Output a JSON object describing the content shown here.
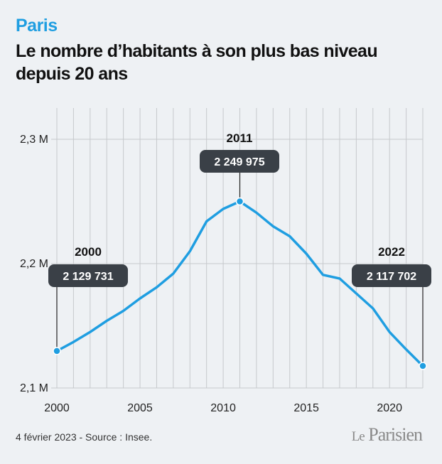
{
  "kicker": "Paris",
  "title": "Le nombre d’habitants à son plus bas niveau depuis 20 ans",
  "footer": "4 février 2023 - Source : Insee.",
  "logo": {
    "le": "Le",
    "name": "Parisien"
  },
  "colors": {
    "line": "#1f9ee1",
    "callout": "#3a4047",
    "grid": "#c6c9cc",
    "background": "#eef1f4"
  },
  "chart_data": {
    "type": "line",
    "title": "Le nombre d’habitants à son plus bas niveau depuis 20 ans",
    "xlabel": "",
    "ylabel": "",
    "x": [
      2000,
      2001,
      2002,
      2003,
      2004,
      2005,
      2006,
      2007,
      2008,
      2009,
      2010,
      2011,
      2012,
      2013,
      2014,
      2015,
      2016,
      2017,
      2018,
      2019,
      2020,
      2021,
      2022
    ],
    "series": [
      {
        "name": "",
        "values": [
          2129731,
          2137000,
          2145000,
          2154000,
          2162000,
          2172000,
          2181000,
          2192000,
          2210000,
          2234000,
          2244000,
          2249975,
          2241000,
          2230000,
          2222000,
          2208000,
          2191000,
          2188000,
          2176000,
          2164000,
          2145000,
          2131000,
          2117702
        ]
      }
    ],
    "xticks": [
      2000,
      2005,
      2010,
      2015,
      2020
    ],
    "xtick_labels": [
      "2000",
      "2005",
      "2010",
      "2015",
      "2020"
    ],
    "xlim": [
      2000,
      2022
    ],
    "yticks": [
      2100000,
      2200000,
      2300000
    ],
    "ytick_labels": [
      "2,1 M",
      "2,2 M",
      "2,3 M"
    ],
    "ylim": [
      2100000,
      2300000
    ],
    "grid": "vertical yearly lines, horizontal at y ticks",
    "annotations": [
      {
        "year": 2000,
        "year_label": "2000",
        "value_label": "2 129 731"
      },
      {
        "year": 2011,
        "year_label": "2011",
        "value_label": "2 249 975"
      },
      {
        "year": 2022,
        "year_label": "2022",
        "value_label": "2 117 702"
      }
    ]
  }
}
